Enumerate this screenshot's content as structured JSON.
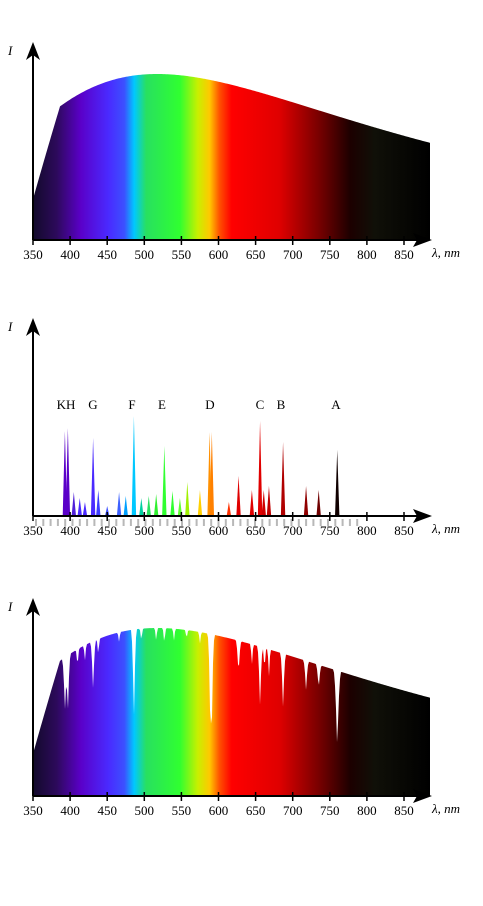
{
  "axis": {
    "ticks": [
      "350",
      "400",
      "450",
      "500",
      "550",
      "600",
      "650",
      "700",
      "750",
      "800",
      "850"
    ],
    "x_label": "λ",
    "x_unit": ", nm",
    "y_label": "I"
  },
  "panels": [
    {
      "name": "continuous-spectrum"
    },
    {
      "name": "absorption-lines"
    },
    {
      "name": "absorption-spectrum"
    }
  ],
  "fraunhofer_labels": [
    "KH",
    "G",
    "F",
    "E",
    "D",
    "C",
    "B",
    "A"
  ],
  "colors": {
    "violet": "#5a00c8",
    "blue": "#3c3cff",
    "cyan": "#00c8ff",
    "green": "#30ff30",
    "yellow": "#ffe000",
    "orange": "#ff8c00",
    "red": "#ff0000",
    "dark": "#000000"
  },
  "chart_data": [
    {
      "type": "area",
      "x_range": [
        350,
        900
      ],
      "curve": "planck-like, peak ≈ 530 nm",
      "ticks": [
        350,
        400,
        450,
        500,
        550,
        600,
        650,
        700,
        750,
        800,
        850
      ]
    },
    {
      "type": "bar",
      "lines": [
        {
          "label": "KH",
          "wavelengths": [
            393,
            397
          ]
        },
        {
          "label": "G",
          "wavelength": 431
        },
        {
          "label": "F",
          "wavelength": 486
        },
        {
          "label": "E",
          "wavelength": 527
        },
        {
          "label": "D",
          "wavelengths": [
            589,
            590
          ]
        },
        {
          "label": "C",
          "wavelength": 656
        },
        {
          "label": "B",
          "wavelength": 687
        },
        {
          "label": "A",
          "wavelength": 760
        }
      ]
    },
    {
      "type": "area",
      "x_range": [
        350,
        900
      ],
      "note": "continuous spectrum with absorption dips"
    }
  ]
}
